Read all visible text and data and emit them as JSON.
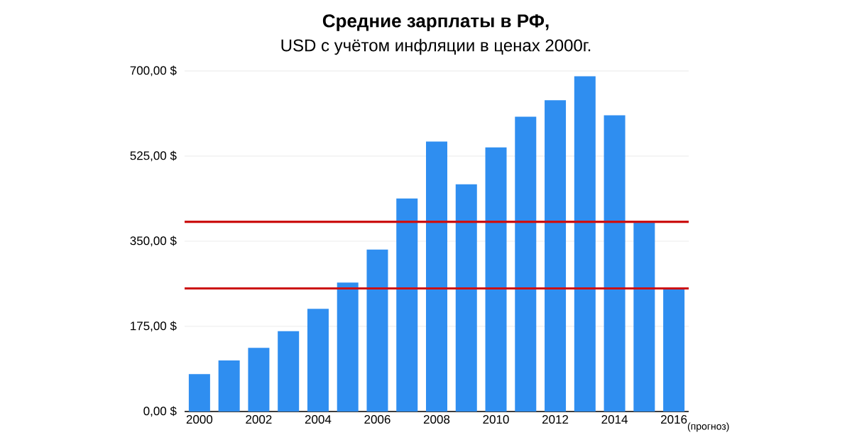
{
  "chart_data": {
    "type": "bar",
    "title": "Средние зарплаты в РФ,",
    "subtitle": "USD с учётом инфляции в ценах 2000г.",
    "categories": [
      "2000",
      null,
      "2002",
      null,
      "2004",
      null,
      "2006",
      null,
      "2008",
      null,
      "2010",
      null,
      "2012",
      null,
      "2014",
      null,
      "2016"
    ],
    "values": [
      77,
      105,
      131,
      165,
      211,
      265,
      333,
      438,
      555,
      467,
      543,
      606,
      640,
      689,
      609,
      390,
      252
    ],
    "color": "#2f8ef0",
    "ylim": [
      0,
      700
    ],
    "yticks": [
      {
        "value": 0,
        "label": "0,00 $"
      },
      {
        "value": 175,
        "label": "175,00 $"
      },
      {
        "value": 350,
        "label": "350,00 $"
      },
      {
        "value": 525,
        "label": "525,00 $"
      },
      {
        "value": 700,
        "label": "700,00 $"
      }
    ],
    "grid": "y",
    "ref_lines": [
      {
        "axis": "y",
        "value": 390,
        "color": "#cc1111"
      },
      {
        "axis": "y",
        "value": 253,
        "color": "#cc1111"
      }
    ],
    "annotations": [
      "(прогноз)"
    ]
  }
}
